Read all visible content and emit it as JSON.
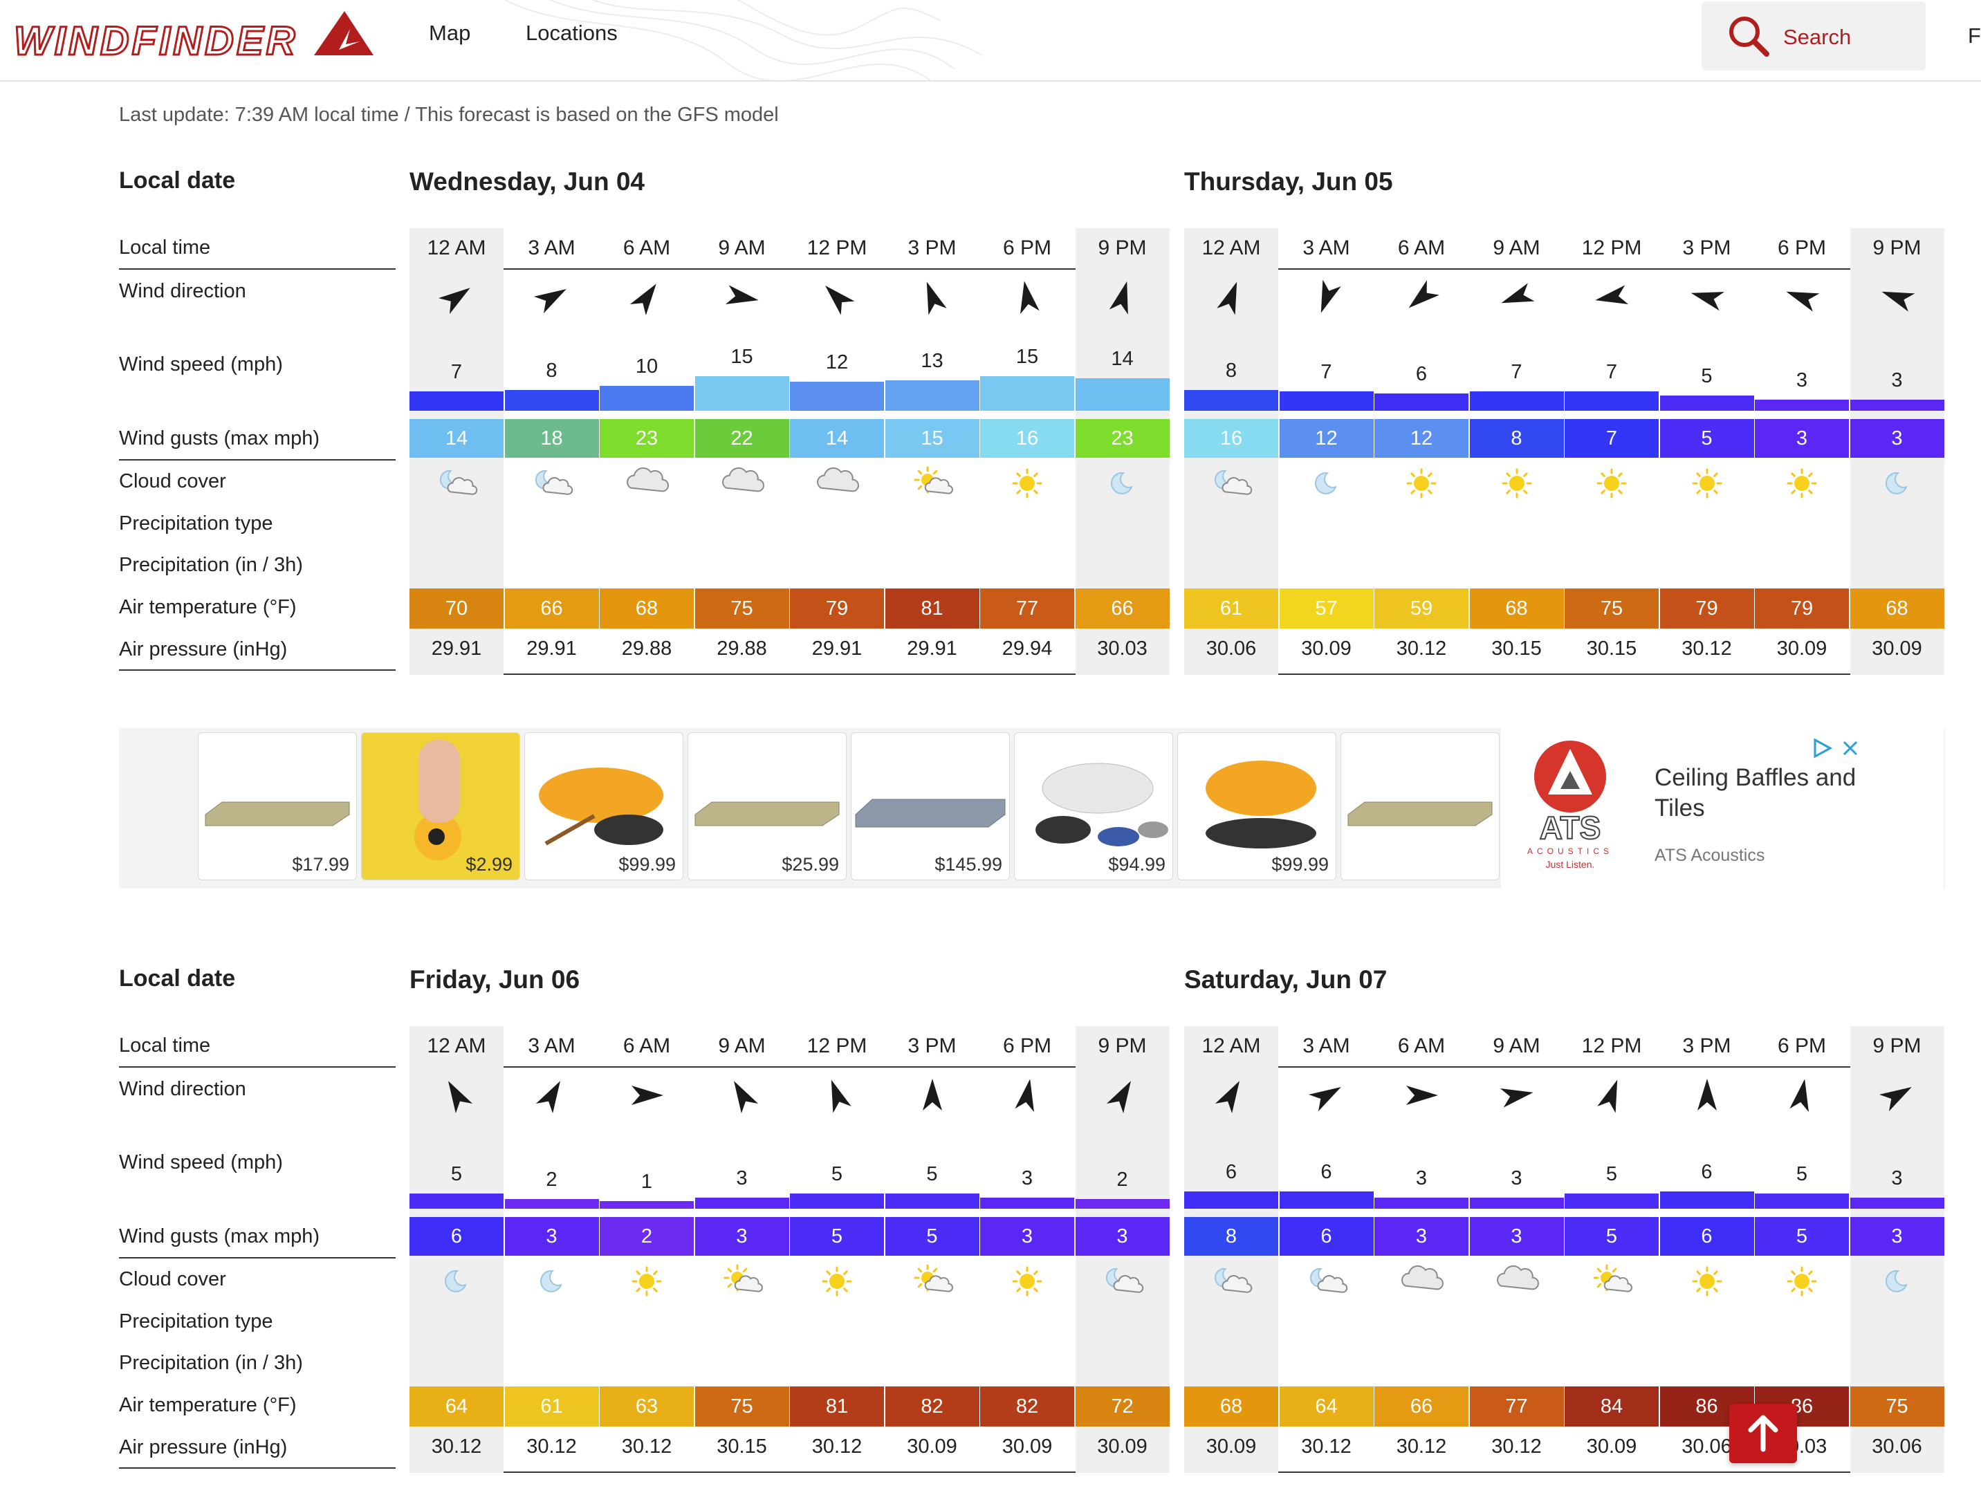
{
  "header": {
    "brand": "WINDFINDER",
    "nav": [
      "Map",
      "Locations"
    ],
    "search_label": "Search",
    "cut_link": "F"
  },
  "last_update": "Last update: 7:39 AM local time / This forecast is based on the GFS model",
  "row_labels": {
    "local_date": "Local date",
    "local_time": "Local time",
    "wind_direction": "Wind direction",
    "wind_speed": "Wind speed (mph)",
    "wind_gusts": "Wind gusts (max mph)",
    "cloud_cover": "Cloud cover",
    "precip_type": "Precipitation type",
    "precip": "Precipitation (in / 3h)",
    "air_temp": "Air temperature (°F)",
    "air_pressure": "Air pressure (inHg)"
  },
  "times": [
    "12 AM",
    "3 AM",
    "6 AM",
    "9 AM",
    "12 PM",
    "3 PM",
    "6 PM",
    "9 PM"
  ],
  "colors": {
    "brand": "#b21d1d",
    "shaded_column": "#efefef"
  },
  "days": [
    {
      "title": "Wednesday, Jun 04",
      "wind_dir_deg": [
        55,
        60,
        35,
        100,
        315,
        340,
        350,
        15
      ],
      "speed": [
        7,
        8,
        10,
        15,
        12,
        13,
        15,
        14
      ],
      "gusts": [
        14,
        18,
        23,
        22,
        14,
        15,
        16,
        23
      ],
      "cloud": [
        "moon-cloud",
        "moon-cloud",
        "cloud",
        "cloud",
        "cloud",
        "sun-cloud",
        "sun",
        "moon"
      ],
      "temp": [
        70,
        66,
        68,
        75,
        79,
        81,
        77,
        66
      ],
      "pressure": [
        "29.91",
        "29.91",
        "29.88",
        "29.88",
        "29.91",
        "29.91",
        "29.94",
        "30.03"
      ]
    },
    {
      "title": "Thursday, Jun 05",
      "wind_dir_deg": [
        20,
        200,
        230,
        250,
        260,
        285,
        290,
        290
      ],
      "speed": [
        8,
        7,
        6,
        7,
        7,
        5,
        3,
        3
      ],
      "gusts": [
        16,
        12,
        12,
        8,
        7,
        5,
        3,
        3
      ],
      "cloud": [
        "moon-cloud",
        "moon",
        "sun",
        "sun",
        "sun",
        "sun",
        "sun",
        "moon"
      ],
      "temp": [
        61,
        57,
        59,
        68,
        75,
        79,
        79,
        68
      ],
      "pressure": [
        "30.06",
        "30.09",
        "30.12",
        "30.15",
        "30.15",
        "30.12",
        "30.09",
        "30.09"
      ]
    },
    {
      "title": "Friday, Jun 06",
      "wind_dir_deg": [
        330,
        30,
        90,
        330,
        340,
        0,
        10,
        30
      ],
      "speed": [
        5,
        2,
        1,
        3,
        5,
        5,
        3,
        2
      ],
      "gusts": [
        6,
        3,
        2,
        3,
        5,
        5,
        3,
        3
      ],
      "cloud": [
        "moon",
        "moon",
        "sun",
        "sun-cloud",
        "sun",
        "sun-cloud",
        "sun",
        "moon-cloud"
      ],
      "temp": [
        64,
        61,
        63,
        75,
        81,
        82,
        82,
        72
      ],
      "pressure": [
        "30.12",
        "30.12",
        "30.12",
        "30.15",
        "30.12",
        "30.09",
        "30.09",
        "30.09"
      ]
    },
    {
      "title": "Saturday, Jun 07",
      "wind_dir_deg": [
        30,
        60,
        90,
        80,
        20,
        0,
        10,
        60
      ],
      "speed": [
        6,
        6,
        3,
        3,
        5,
        6,
        5,
        3
      ],
      "gusts": [
        8,
        6,
        3,
        3,
        5,
        6,
        5,
        3
      ],
      "cloud": [
        "moon-cloud",
        "moon-cloud",
        "cloud",
        "cloud",
        "sun-cloud",
        "sun",
        "sun",
        "moon"
      ],
      "temp": [
        68,
        64,
        66,
        77,
        84,
        86,
        86,
        75
      ],
      "pressure": [
        "30.09",
        "30.12",
        "30.12",
        "30.12",
        "30.09",
        "30.06",
        "30.03",
        "30.06"
      ]
    }
  ],
  "ad": {
    "prices": [
      "$17.99",
      "$2.99",
      "$99.99",
      "$25.99",
      "$145.99",
      "$94.99",
      "$99.99",
      ""
    ],
    "headline": "Ceiling Baffles and Tiles",
    "source": "ATS Acoustics",
    "logo_text": "ATS",
    "logo_subtext": "ACOUSTICS",
    "logo_tagline": "Just Listen."
  }
}
